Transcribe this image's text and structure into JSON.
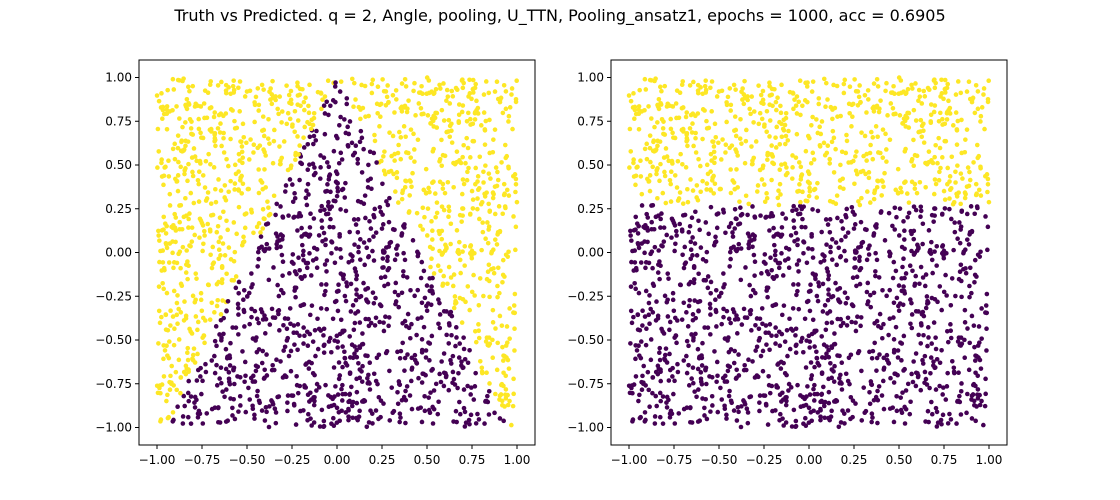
{
  "figure": {
    "suptitle": "Truth vs Predicted. q = 2, Angle, pooling, U_TTN, Pooling_ansatz1, epochs = 1000, acc = 0.6905"
  },
  "colors": {
    "class_0": "#440154",
    "class_1": "#fde725",
    "axes": "#000000",
    "background": "#ffffff"
  },
  "chart_data": [
    {
      "type": "scatter",
      "panel": "truth",
      "title": "",
      "xlabel": "",
      "ylabel": "",
      "xlim": [
        -1.1,
        1.1
      ],
      "ylim": [
        -1.1,
        1.1
      ],
      "xticks": [
        -1.0,
        -0.75,
        -0.5,
        -0.25,
        0.0,
        0.25,
        0.5,
        0.75,
        1.0
      ],
      "yticks": [
        -1.0,
        -0.75,
        -0.5,
        -0.25,
        0.0,
        0.25,
        0.5,
        0.75,
        1.0
      ],
      "xtick_labels": [
        "−1.00",
        "−0.75",
        "−0.50",
        "−0.25",
        "0.00",
        "0.25",
        "0.50",
        "0.75",
        "1.00"
      ],
      "ytick_labels": [
        "−1.00",
        "−0.75",
        "−0.50",
        "−0.25",
        "0.00",
        "0.25",
        "0.50",
        "0.75",
        "1.00"
      ],
      "grid": false,
      "n_points": 2000,
      "point_range": [
        -1.0,
        1.0
      ],
      "labeling_rule": "class 0 (purple) inside triangle with apex (0, 1) and base from (-0.95, -1) to (0.95, -1); class 1 (yellow) outside"
    },
    {
      "type": "scatter",
      "panel": "predicted",
      "title": "",
      "xlabel": "",
      "ylabel": "",
      "xlim": [
        -1.1,
        1.1
      ],
      "ylim": [
        -1.1,
        1.1
      ],
      "xticks": [
        -1.0,
        -0.75,
        -0.5,
        -0.25,
        0.0,
        0.25,
        0.5,
        0.75,
        1.0
      ],
      "yticks": [
        -1.0,
        -0.75,
        -0.5,
        -0.25,
        0.0,
        0.25,
        0.5,
        0.75,
        1.0
      ],
      "xtick_labels": [
        "−1.00",
        "−0.75",
        "−0.50",
        "−0.25",
        "0.00",
        "0.25",
        "0.50",
        "0.75",
        "1.00"
      ],
      "ytick_labels": [
        "−1.00",
        "−0.75",
        "−0.50",
        "−0.25",
        "0.00",
        "0.25",
        "0.50",
        "0.75",
        "1.00"
      ],
      "grid": false,
      "n_points": 2000,
      "point_range": [
        -1.0,
        1.0
      ],
      "labeling_rule": "class 1 (yellow) where y > 0.27; class 0 (purple) otherwise"
    }
  ]
}
